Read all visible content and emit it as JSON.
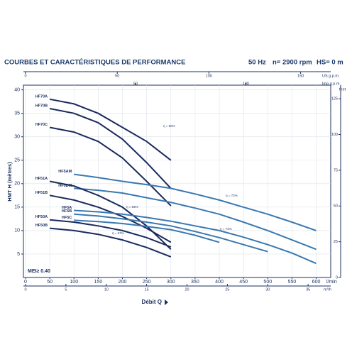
{
  "chart_data": {
    "type": "line",
    "title": "COURBES ET CARACTÉRISTIQUES DE PERFORMANCE",
    "frequency": "50 Hz",
    "speed": "n= 2900 rpm",
    "suction": "HS= 0 m",
    "xlabel": "Débit Q",
    "xunit": "l/min",
    "ylabel": "HMT H (mètres)",
    "x": [
      50,
      100,
      150,
      200,
      250,
      300,
      350,
      400,
      450,
      500,
      550,
      600
    ],
    "xlim": [
      0,
      630
    ],
    "xticks": [
      0,
      50,
      100,
      150,
      200,
      250,
      300,
      350,
      400,
      450,
      500,
      550,
      600
    ],
    "ylim": [
      0,
      41
    ],
    "yticks": [
      5,
      10,
      15,
      20,
      25,
      30,
      35,
      40
    ],
    "grid": true,
    "series": [
      {
        "name": "HF70A",
        "color": "#1a2a5c",
        "values": [
          38,
          37,
          35,
          32,
          29,
          25,
          null,
          null,
          null,
          null,
          null,
          null
        ]
      },
      {
        "name": "HF70B",
        "color": "#1a2a5c",
        "values": [
          36,
          35,
          33,
          29.5,
          24.5,
          19,
          null,
          null,
          null,
          null,
          null,
          null
        ]
      },
      {
        "name": "HF70C",
        "color": "#1a2a5c",
        "values": [
          32,
          31,
          29,
          25.5,
          20.5,
          15.3,
          null,
          null,
          null,
          null,
          null,
          null
        ]
      },
      {
        "name": "HF5AM",
        "color": "#3a78b0",
        "values": [
          null,
          22,
          21.3,
          20.5,
          19.8,
          19,
          17.8,
          16.5,
          15,
          13.5,
          11.8,
          10
        ]
      },
      {
        "name": "HF5BM",
        "color": "#3a78b0",
        "values": [
          null,
          19,
          18.6,
          18,
          17,
          16,
          14.8,
          13.5,
          11.8,
          10,
          8,
          6
        ]
      },
      {
        "name": "HF51A",
        "color": "#1a2a5c",
        "values": [
          20.5,
          19.5,
          17.5,
          15,
          11,
          6,
          null,
          null,
          null,
          null,
          null,
          null
        ]
      },
      {
        "name": "HF51B",
        "color": "#1a2a5c",
        "values": [
          17.5,
          16.5,
          15,
          13,
          10.5,
          7.5,
          null,
          null,
          null,
          null,
          null,
          null
        ]
      },
      {
        "name": "HF5A",
        "color": "#3a78b0",
        "values": [
          null,
          14.3,
          14,
          13.5,
          12.8,
          12,
          11,
          10,
          8.6,
          7,
          5.2,
          3
        ]
      },
      {
        "name": "HF5B",
        "color": "#3a78b0",
        "values": [
          null,
          13.5,
          13.1,
          12.5,
          11.8,
          11,
          9.8,
          8.5,
          7,
          5.5,
          null,
          null
        ]
      },
      {
        "name": "HF5C",
        "color": "#3a78b0",
        "values": [
          null,
          12.2,
          11.9,
          11.5,
          10.9,
          10.2,
          9,
          7.5,
          null,
          null,
          null,
          null
        ]
      },
      {
        "name": "HF50A",
        "color": "#1a2a5c",
        "values": [
          12.3,
          11.8,
          11,
          10,
          8.5,
          6.5,
          null,
          null,
          null,
          null,
          null,
          null
        ]
      },
      {
        "name": "HF50B",
        "color": "#1a2a5c",
        "values": [
          10.5,
          10,
          9.2,
          8,
          6.4,
          4.4,
          null,
          null,
          null,
          null,
          null,
          null
        ]
      }
    ],
    "annotations": [
      "η = 60%",
      "η = 72%",
      "η = 63%",
      "η = 74%",
      "η = 67%"
    ],
    "mei": "MEI≥ 0.40",
    "top_axes": [
      {
        "label": "US g.p.m.",
        "lim": [
          0,
          166.4
        ],
        "ticks": [
          0,
          50,
          100,
          150
        ]
      },
      {
        "label": "Imp g.p.m.",
        "lim": [
          0,
          138.6
        ],
        "ticks": [
          50,
          100
        ]
      }
    ],
    "bottom_axis2": {
      "label": "m³/h",
      "lim": [
        0,
        37.8
      ],
      "ticks": [
        0,
        5,
        10,
        15,
        20,
        25,
        30,
        35
      ]
    },
    "right_axis": {
      "label": "feet",
      "lim": [
        0,
        134.5
      ],
      "ticks": [
        0,
        25,
        50,
        75,
        100,
        125
      ]
    }
  }
}
